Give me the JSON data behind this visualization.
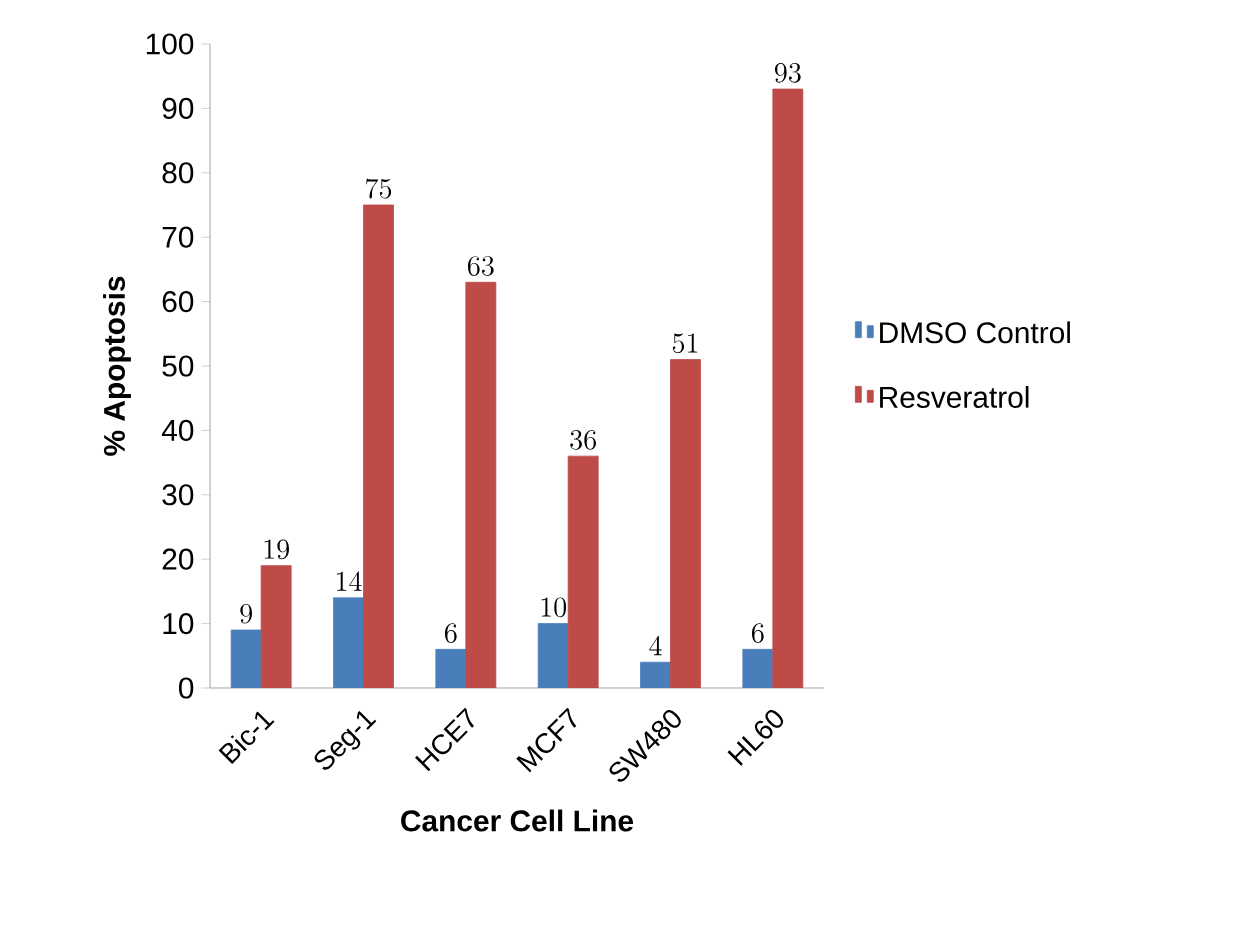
{
  "chart_data": {
    "type": "bar",
    "xlabel": "Cancer Cell Line",
    "ylabel": "% Apoptosis",
    "categories": [
      "Bic-1",
      "Seg-1",
      "HCE7",
      "MCF7",
      "SW480",
      "HL60"
    ],
    "series": [
      {
        "name": "DMSO Control",
        "color": "#4a7ebb",
        "values": [
          9,
          14,
          6,
          10,
          4,
          6
        ]
      },
      {
        "name": "Resveratrol",
        "color": "#be4b48",
        "values": [
          19,
          75,
          63,
          36,
          51,
          93
        ]
      }
    ],
    "ylim": [
      0,
      100
    ],
    "yticks": [
      0,
      10,
      20,
      30,
      40,
      50,
      60,
      70,
      80,
      90,
      100
    ],
    "data_labels": true,
    "legend": "right",
    "grid": false
  }
}
